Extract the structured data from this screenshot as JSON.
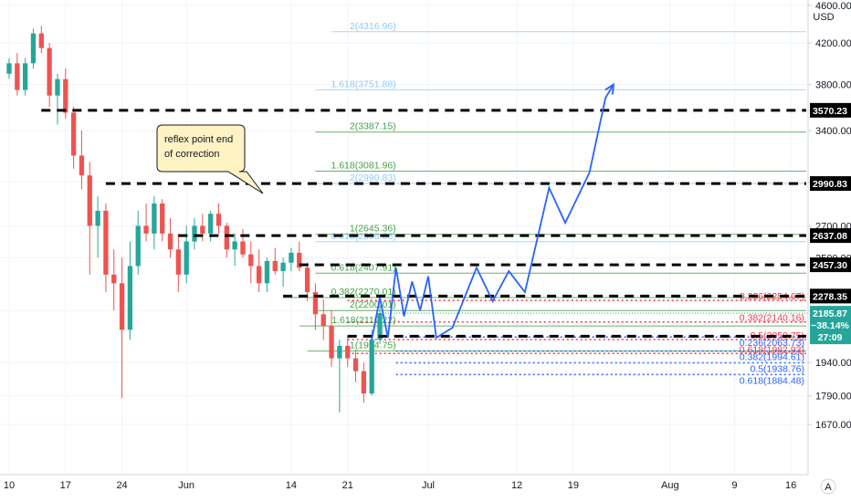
{
  "currency": "USD",
  "scale_button": "A",
  "callout": {
    "line1": "reflex point end",
    "line2": "of correction"
  },
  "price_badge": {
    "price": "2185.87",
    "change": "−38.14%",
    "countdown": "27:09"
  },
  "colors": {
    "up": "#26a69a",
    "down": "#ef5350",
    "projection": "#2962ff",
    "fib_green": "#43a047",
    "fib_light": "#90caf9",
    "fib_red": "#f23645",
    "fib_blue": "#2962ff",
    "callout_bg": "#fff3c4",
    "callout_border": "#131722"
  },
  "chart_data": {
    "type": "candlestick",
    "ylim": [
      1560,
      4600
    ],
    "xlim": [
      0,
      98
    ],
    "y_ticks": [
      {
        "v": 4600,
        "label": "4600.00"
      },
      {
        "v": 4200,
        "label": "4200.00"
      },
      {
        "v": 3800,
        "label": "3800.00"
      },
      {
        "v": 3400,
        "label": "3400.00"
      },
      {
        "v": 3000,
        "label": "3000.00"
      },
      {
        "v": 2700,
        "label": "2700.00"
      },
      {
        "v": 2500,
        "label": "2500.00"
      },
      {
        "v": 2200,
        "label": "2200.00"
      },
      {
        "v": 1940,
        "label": "1940.00"
      },
      {
        "v": 1790,
        "label": "1790.00"
      },
      {
        "v": 1670,
        "label": "1670.00"
      }
    ],
    "x_ticks": [
      {
        "day": 0,
        "label": "10"
      },
      {
        "day": 7,
        "label": "17"
      },
      {
        "day": 14,
        "label": "24"
      },
      {
        "day": 22,
        "label": "Jun"
      },
      {
        "day": 35,
        "label": "14"
      },
      {
        "day": 42,
        "label": "21"
      },
      {
        "day": 52,
        "label": "Jul"
      },
      {
        "day": 63,
        "label": "12"
      },
      {
        "day": 70,
        "label": "19"
      },
      {
        "day": 82,
        "label": "Aug"
      },
      {
        "day": 90,
        "label": "9"
      },
      {
        "day": 97,
        "label": "16"
      }
    ],
    "candles": [
      [
        3900,
        4050,
        3850,
        4000
      ],
      [
        4000,
        4100,
        3700,
        3750
      ],
      [
        3750,
        4050,
        3700,
        4000
      ],
      [
        4000,
        4350,
        3950,
        4300
      ],
      [
        4300,
        4380,
        4100,
        4150
      ],
      [
        4150,
        4200,
        3600,
        3700
      ],
      [
        3700,
        3900,
        3450,
        3850
      ],
      [
        3850,
        3950,
        3500,
        3550
      ],
      [
        3550,
        3600,
        3100,
        3200
      ],
      [
        3200,
        3400,
        2950,
        3050
      ],
      [
        3050,
        3150,
        2400,
        2700
      ],
      [
        2700,
        2900,
        2500,
        2800
      ],
      [
        2800,
        2850,
        2300,
        2400
      ],
      [
        2400,
        2550,
        2200,
        2350
      ],
      [
        2350,
        2500,
        1780,
        2100
      ],
      [
        2100,
        2600,
        2050,
        2450
      ],
      [
        2450,
        2800,
        2400,
        2700
      ],
      [
        2700,
        2850,
        2600,
        2650
      ],
      [
        2650,
        2900,
        2550,
        2850
      ],
      [
        2850,
        2880,
        2600,
        2650
      ],
      [
        2650,
        2750,
        2500,
        2550
      ],
      [
        2550,
        2650,
        2300,
        2400
      ],
      [
        2400,
        2700,
        2350,
        2600
      ],
      [
        2600,
        2750,
        2550,
        2700
      ],
      [
        2700,
        2780,
        2600,
        2650
      ],
      [
        2650,
        2800,
        2600,
        2780
      ],
      [
        2780,
        2850,
        2650,
        2700
      ],
      [
        2700,
        2720,
        2500,
        2550
      ],
      [
        2550,
        2650,
        2450,
        2600
      ],
      [
        2600,
        2680,
        2500,
        2520
      ],
      [
        2520,
        2600,
        2350,
        2450
      ],
      [
        2450,
        2550,
        2300,
        2350
      ],
      [
        2350,
        2500,
        2300,
        2480
      ],
      [
        2480,
        2560,
        2400,
        2420
      ],
      [
        2420,
        2500,
        2330,
        2470
      ],
      [
        2470,
        2560,
        2420,
        2530
      ],
      [
        2530,
        2600,
        2420,
        2440
      ],
      [
        2440,
        2470,
        2250,
        2300
      ],
      [
        2300,
        2350,
        2100,
        2180
      ],
      [
        2180,
        2260,
        2050,
        2120
      ],
      [
        2120,
        2200,
        1920,
        1960
      ],
      [
        1960,
        2050,
        1720,
        2020
      ],
      [
        2020,
        2070,
        1920,
        1960
      ],
      [
        1960,
        2000,
        1850,
        1900
      ],
      [
        1900,
        1940,
        1760,
        1800
      ],
      [
        1800,
        2100,
        1790,
        2050
      ],
      [
        2050,
        2230,
        2030,
        2186
      ]
    ],
    "projection_path": [
      [
        45,
        2050
      ],
      [
        46,
        2270
      ],
      [
        47,
        2060
      ],
      [
        48,
        2440
      ],
      [
        49,
        2170
      ],
      [
        50,
        2360
      ],
      [
        51,
        2200
      ],
      [
        52,
        2390
      ],
      [
        53,
        2060
      ],
      [
        55,
        2110
      ],
      [
        58,
        2440
      ],
      [
        60,
        2250
      ],
      [
        62,
        2420
      ],
      [
        64,
        2300
      ],
      [
        67,
        2960
      ],
      [
        69,
        2720
      ],
      [
        72,
        3070
      ],
      [
        74,
        3680
      ],
      [
        75,
        3800
      ]
    ],
    "key_levels": [
      {
        "v": 3570.23,
        "label": "3570.23",
        "x0": 4
      },
      {
        "v": 2990.83,
        "label": "2990.83",
        "x0": 12
      },
      {
        "v": 2637.08,
        "label": "2637.08",
        "x0": 21
      },
      {
        "v": 2457.3,
        "label": "2457.30",
        "x0": 36
      },
      {
        "v": 2278.35,
        "label": "2278.35",
        "x0": 34
      },
      {
        "v": 2067.22,
        "label": "2067.22",
        "x0": 42
      }
    ],
    "fib_levels": [
      {
        "v": 4316.96,
        "label": "2(4316.96)",
        "color": "fib_light",
        "x0": 40
      },
      {
        "v": 3751.88,
        "label": "1.618(3751.88)",
        "color": "fib_light",
        "x0": 38
      },
      {
        "v": 3387.15,
        "label": "2(3387.15)",
        "color": "fib_green",
        "x0": 38
      },
      {
        "v": 3081.96,
        "label": "1.618(3081.96)",
        "color": "fib_green",
        "x0": 38
      },
      {
        "v": 2990.83,
        "label": "2(2990.83)",
        "color": "fib_light",
        "x0": 38
      },
      {
        "v": 2645.36,
        "label": "1(2645.36)",
        "color": "fib_green",
        "x0": 38
      },
      {
        "v": 2598.66,
        "label": "0.618(2598.66)",
        "color": "fib_light",
        "x0": 38
      },
      {
        "v": 2407.91,
        "label": "0.618(2407.91)",
        "color": "fib_green",
        "x0": 38
      },
      {
        "v": 2270.01,
        "label": "0.382(2270.01)",
        "color": "fib_green",
        "x0": 34
      },
      {
        "v": 2200.01,
        "label": "2(2200.01)",
        "color": "fib_green",
        "x0": 38
      },
      {
        "v": 2119.22,
        "label": "1.618(2119.22)",
        "color": "fib_green",
        "x0": 36
      },
      {
        "v": 1994.75,
        "label": "1(1994.75)",
        "color": "fib_green",
        "x0": 37
      }
    ],
    "red_levels": [
      {
        "v": 2254.67,
        "label": "0.236(2254.67)"
      },
      {
        "v": 2140.16,
        "label": "0.382(2140.16)"
      },
      {
        "v": 2050.75,
        "label": "0.5(2050.75)"
      },
      {
        "v": 1982.93,
        "label": "0.618(1982.93)"
      }
    ],
    "blue_levels": [
      {
        "v": 2063.73,
        "label": "0.236(2063.73)"
      },
      {
        "v": 1994.61,
        "label": "0.382(1994.61)"
      },
      {
        "v": 1938.76,
        "label": "0.5(1938.76)"
      },
      {
        "v": 1884.48,
        "label": "0.618(1884.48)"
      }
    ]
  }
}
